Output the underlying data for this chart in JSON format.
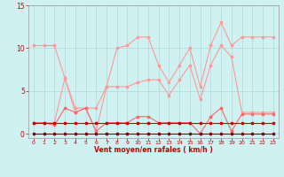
{
  "x": [
    0,
    1,
    2,
    3,
    4,
    5,
    6,
    7,
    8,
    9,
    10,
    11,
    12,
    13,
    14,
    15,
    16,
    17,
    18,
    19,
    20,
    21,
    22,
    23
  ],
  "line_rafales": [
    10.3,
    10.3,
    10.3,
    6.5,
    3.0,
    3.0,
    3.0,
    5.5,
    10.0,
    10.3,
    11.3,
    11.3,
    8.0,
    6.0,
    8.0,
    10.0,
    5.5,
    10.3,
    13.0,
    10.3,
    11.3,
    11.3,
    11.3,
    11.3
  ],
  "line_moy_upper": [
    1.3,
    1.3,
    1.3,
    6.5,
    2.5,
    3.0,
    0.3,
    5.5,
    5.5,
    5.5,
    6.0,
    6.3,
    6.3,
    4.5,
    6.3,
    8.0,
    4.0,
    8.0,
    10.3,
    9.0,
    2.5,
    2.5,
    2.5,
    2.5
  ],
  "line_moy_lower": [
    1.3,
    1.3,
    1.0,
    3.0,
    2.5,
    3.0,
    0.3,
    1.3,
    1.3,
    1.3,
    2.0,
    2.0,
    1.3,
    1.3,
    1.3,
    1.3,
    0.0,
    2.0,
    3.0,
    0.3,
    2.3,
    2.3,
    2.3,
    2.3
  ],
  "line_zero": [
    1.3,
    1.3,
    1.3,
    1.3,
    1.3,
    1.3,
    1.3,
    1.3,
    1.3,
    1.3,
    1.3,
    1.3,
    1.3,
    1.3,
    1.3,
    1.3,
    1.3,
    1.3,
    1.3,
    1.3,
    1.3,
    1.3,
    1.3,
    1.3
  ],
  "line_bottom": [
    0.0,
    0.0,
    0.0,
    0.0,
    0.0,
    0.0,
    0.0,
    0.0,
    0.0,
    0.0,
    0.0,
    0.0,
    0.0,
    0.0,
    0.0,
    0.0,
    0.0,
    0.0,
    0.0,
    0.0,
    0.0,
    0.0,
    0.0,
    0.0
  ],
  "xlabel": "Vent moyen/en rafales ( km/h )",
  "xlim_min": -0.5,
  "xlim_max": 23.5,
  "ylim_min": -0.5,
  "ylim_max": 15,
  "yticks": [
    0,
    5,
    10,
    15
  ],
  "xticks": [
    0,
    1,
    2,
    3,
    4,
    5,
    6,
    7,
    8,
    9,
    10,
    11,
    12,
    13,
    14,
    15,
    16,
    17,
    18,
    19,
    20,
    21,
    22,
    23
  ],
  "bg_color": "#cff1f1",
  "grid_color": "#b0d8d8",
  "color_light": "#ff9999",
  "color_medium": "#ff6666",
  "color_dark": "#cc0000",
  "color_darkest": "#880000"
}
